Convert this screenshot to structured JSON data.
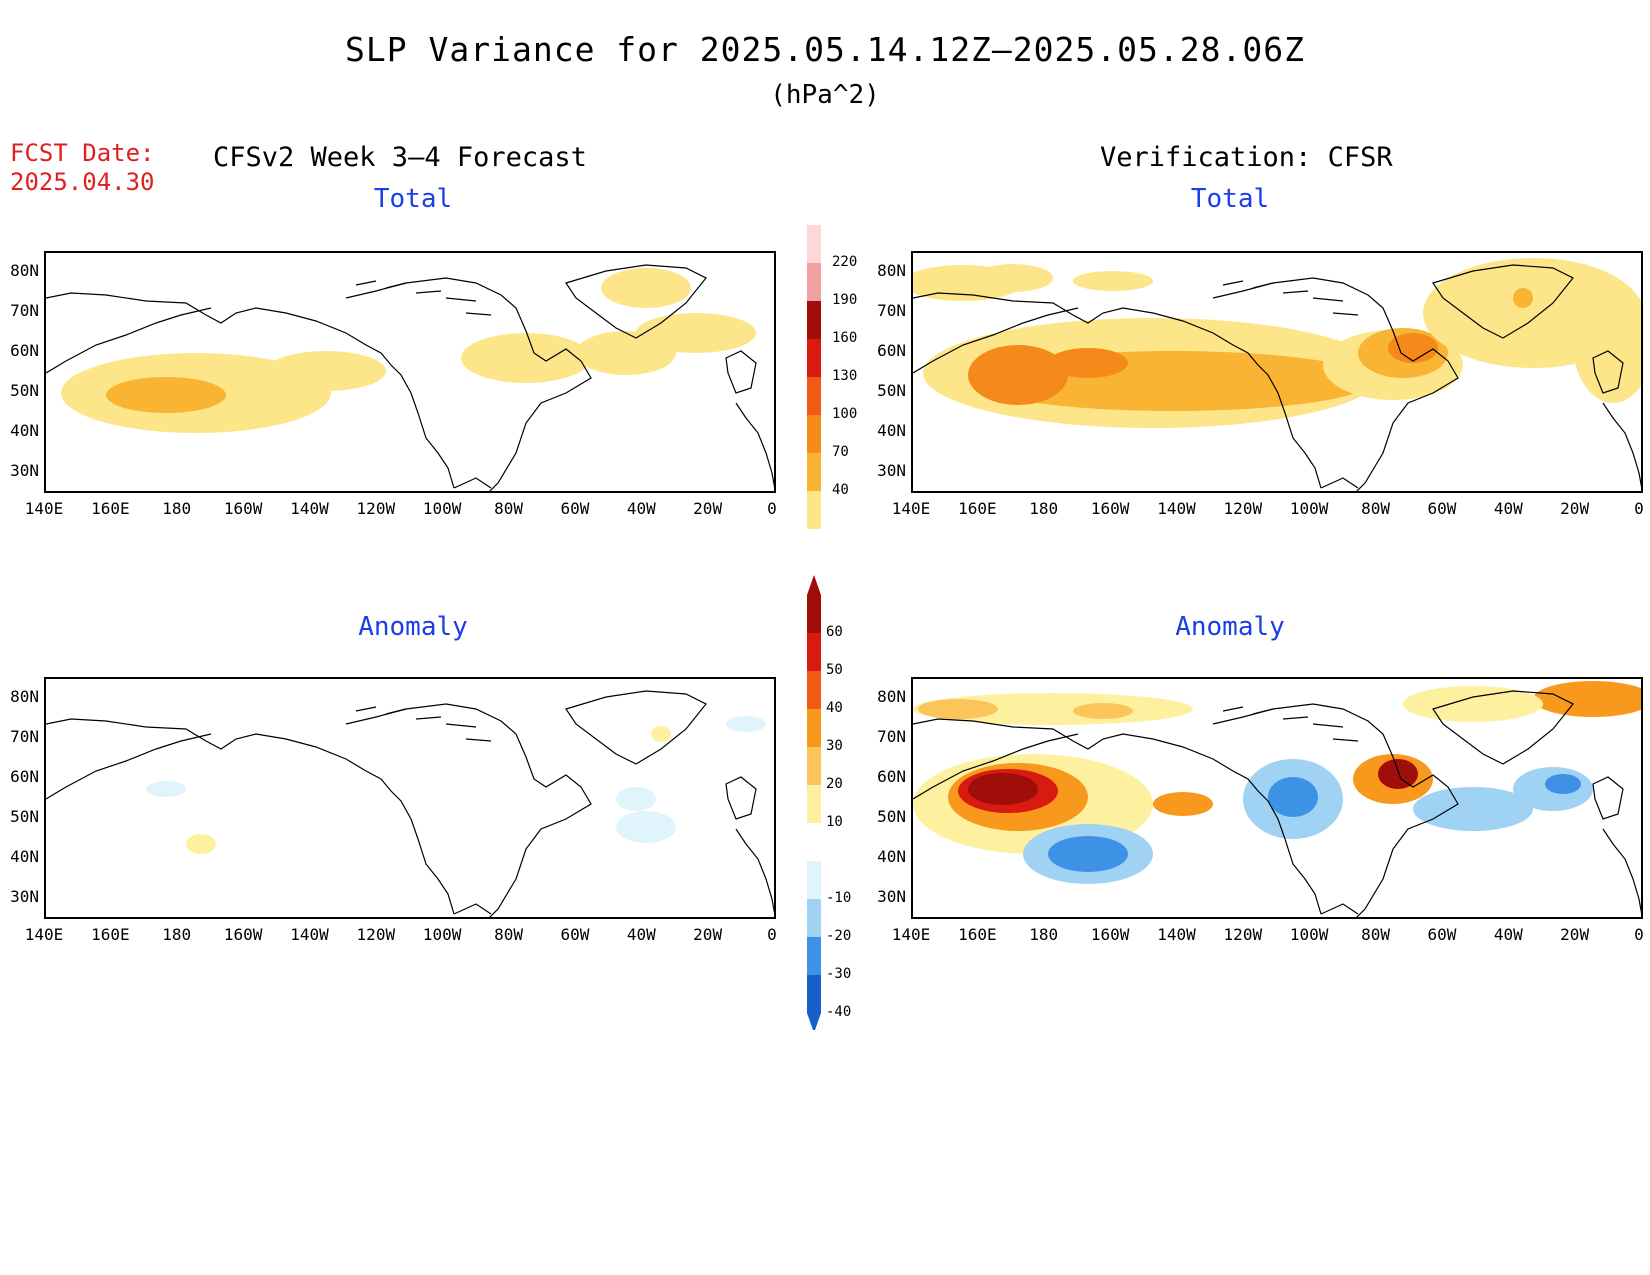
{
  "title": "SLP Variance for 2025.05.14.12Z—2025.05.28.06Z",
  "units": "(hPa^2)",
  "fcst_label": "FCST Date:",
  "fcst_date": "2025.04.30",
  "left_heading": "CFSv2 Week 3—4 Forecast",
  "right_heading": "Verification: CFSR",
  "panels": {
    "top_left_title": "Total",
    "top_right_title": "Total",
    "bottom_left_title": "Anomaly",
    "bottom_right_title": "Anomaly"
  },
  "lat_labels": [
    "80N",
    "70N",
    "60N",
    "50N",
    "40N",
    "30N"
  ],
  "lon_labels": [
    "140E",
    "160E",
    "180",
    "160W",
    "140W",
    "120W",
    "100W",
    "80W",
    "60W",
    "40W",
    "20W",
    "0"
  ],
  "total_colorbar": {
    "levels": [
      "40",
      "70",
      "100",
      "130",
      "160",
      "190",
      "220"
    ],
    "colors": [
      "#fde68a",
      "#f8b432",
      "#f58a1a",
      "#f05a14",
      "#d81a10",
      "#a00e0a",
      "#f0a0a0",
      "#fcd8d8"
    ]
  },
  "anomaly_colorbar": {
    "levels": [
      "60",
      "50",
      "40",
      "30",
      "20",
      "10",
      "-10",
      "-20",
      "-30",
      "-40"
    ],
    "colors": [
      "#a00e0a",
      "#d81a10",
      "#f05a14",
      "#f8981c",
      "#fbc55a",
      "#fdf1a0",
      "#ffffff",
      "#dff4fb",
      "#9fd2f3",
      "#3d92e6",
      "#1760cc"
    ]
  },
  "colors": {
    "title_red": "#e02020",
    "panel_title_blue": "#1b3fe6"
  }
}
